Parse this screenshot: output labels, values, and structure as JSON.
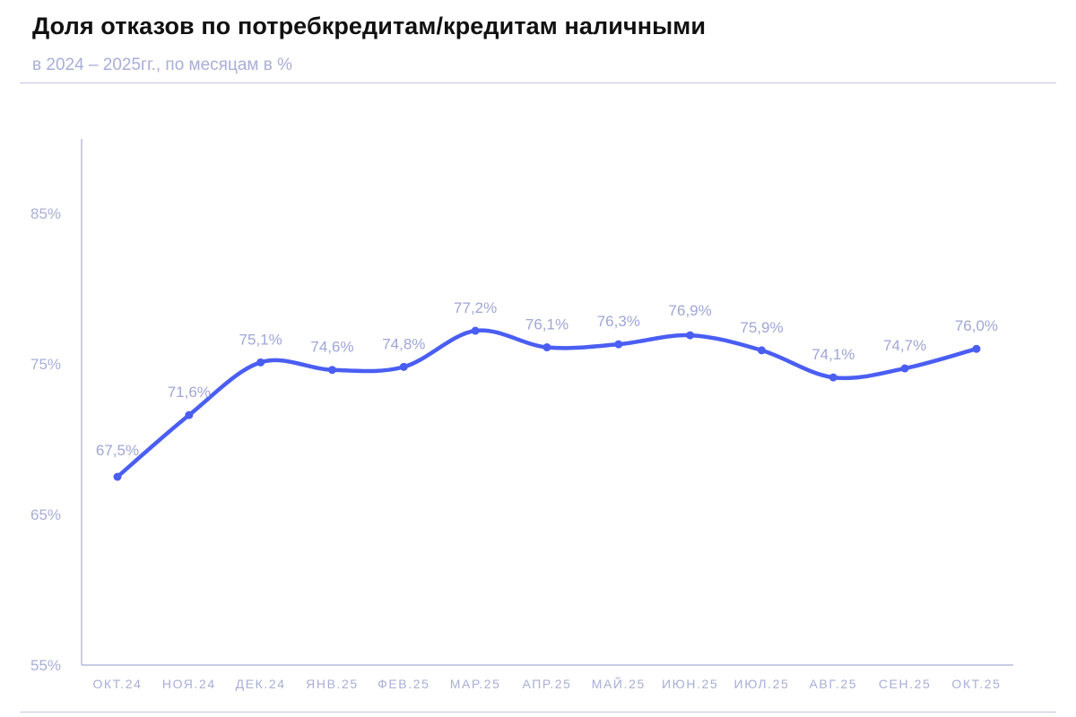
{
  "header": {
    "title": "Доля отказов по потребкредитам/кредитам наличными",
    "subtitle": "в 2024 – 2025гг., по месяцам в %"
  },
  "colors": {
    "line": "#4a5ef2",
    "axis": "#a9aed6",
    "labels": "#a0a6d6",
    "rule": "#c3c6e6",
    "title": "#111111"
  },
  "chart_data": {
    "type": "line",
    "title": "Доля отказов по потребкредитам/кредитам наличными",
    "subtitle": "в 2024 – 2025гг., по месяцам в %",
    "xlabel": "",
    "ylabel": "",
    "categories": [
      "ОКТ.24",
      "НОЯ.24",
      "ДЕК.24",
      "ЯНВ.25",
      "ФЕВ.25",
      "МАР.25",
      "АПР.25",
      "МАЙ.25",
      "ИЮН.25",
      "ИЮЛ.25",
      "АВГ.25",
      "СЕН.25",
      "ОКТ.25"
    ],
    "series": [
      {
        "name": "Доля отказов",
        "values": [
          67.5,
          71.6,
          75.1,
          74.6,
          74.8,
          77.2,
          76.1,
          76.3,
          76.9,
          75.9,
          74.1,
          74.7,
          76.0
        ]
      }
    ],
    "data_labels": [
      "67,5%",
      "71,6%",
      "75,1%",
      "74,6%",
      "74,8%",
      "77,2%",
      "76,1%",
      "76,3%",
      "76,9%",
      "75,9%",
      "74,1%",
      "74,7%",
      "76,0%"
    ],
    "yticks": [
      55,
      65,
      75,
      85
    ],
    "ytick_labels": [
      "55%",
      "65%",
      "75%",
      "85%"
    ],
    "ylim": [
      55,
      90
    ],
    "grid": false,
    "legend": "none"
  }
}
